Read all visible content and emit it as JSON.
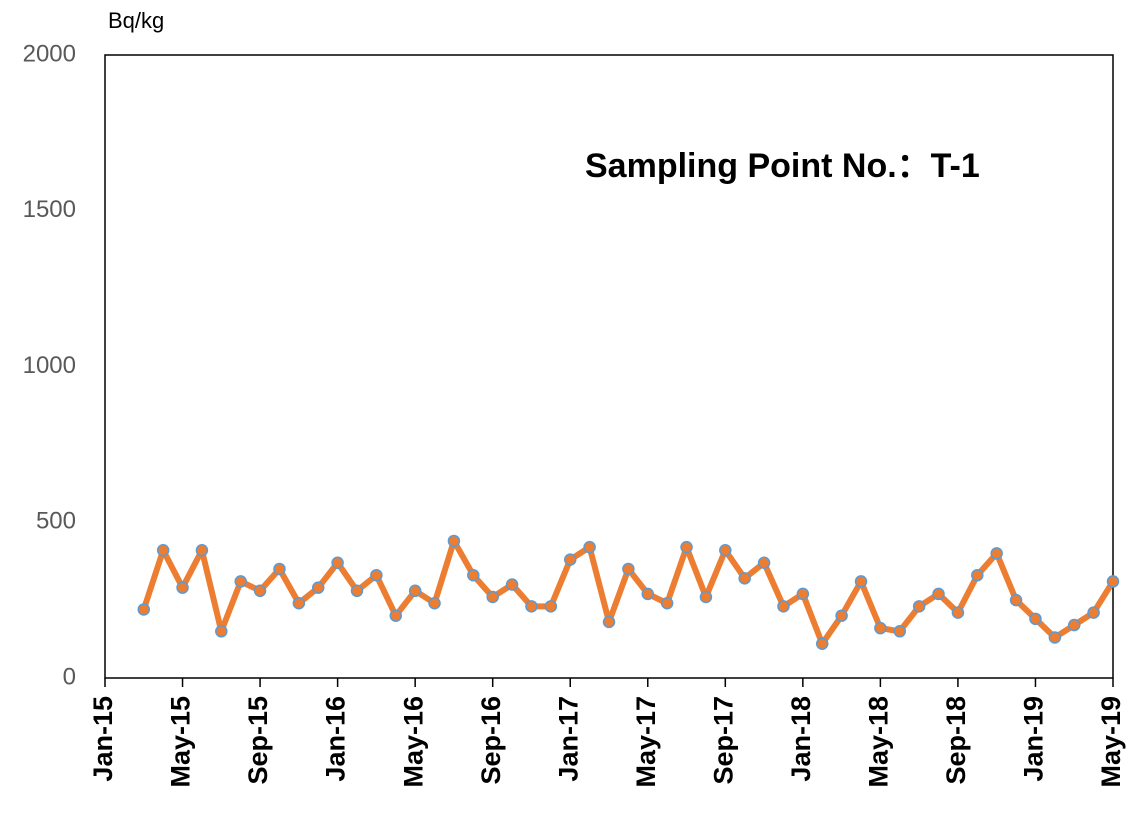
{
  "chart_data": {
    "type": "line",
    "y_label": "Bq/kg",
    "annotation": "Sampling Point No.：T-1",
    "x": [
      "2015-03",
      "2015-04",
      "2015-05",
      "2015-06",
      "2015-07",
      "2015-08",
      "2015-09",
      "2015-10",
      "2015-11",
      "2015-12",
      "2016-01",
      "2016-02",
      "2016-03",
      "2016-04",
      "2016-05",
      "2016-06",
      "2016-07",
      "2016-08",
      "2016-09",
      "2016-10",
      "2016-11",
      "2016-12",
      "2017-01",
      "2017-02",
      "2017-03",
      "2017-04",
      "2017-05",
      "2017-06",
      "2017-07",
      "2017-08",
      "2017-09",
      "2017-10",
      "2017-11",
      "2017-12",
      "2018-01",
      "2018-02",
      "2018-03",
      "2018-04",
      "2018-05",
      "2018-06",
      "2018-07",
      "2018-08",
      "2018-09",
      "2018-10",
      "2018-11",
      "2018-12",
      "2019-01",
      "2019-02",
      "2019-03",
      "2019-04",
      "2019-05"
    ],
    "series": [
      {
        "color": "#ED7D31",
        "marker_edge_color": "#5B9BD5",
        "values": [
          220,
          410,
          290,
          410,
          150,
          310,
          280,
          350,
          240,
          290,
          370,
          280,
          330,
          200,
          280,
          240,
          440,
          330,
          260,
          300,
          230,
          230,
          380,
          420,
          180,
          350,
          270,
          240,
          420,
          260,
          410,
          320,
          370,
          230,
          270,
          110,
          200,
          310,
          160,
          150,
          230,
          270,
          210,
          330,
          400,
          250,
          190,
          130,
          170,
          210,
          310
        ]
      }
    ],
    "xlim": [
      "2015-01",
      "2019-05"
    ],
    "xticks": [
      {
        "value": "2015-01",
        "label": "Jan-15"
      },
      {
        "value": "2015-05",
        "label": "May-15"
      },
      {
        "value": "2015-09",
        "label": "Sep-15"
      },
      {
        "value": "2016-01",
        "label": "Jan-16"
      },
      {
        "value": "2016-05",
        "label": "May-16"
      },
      {
        "value": "2016-09",
        "label": "Sep-16"
      },
      {
        "value": "2017-01",
        "label": "Jan-17"
      },
      {
        "value": "2017-05",
        "label": "May-17"
      },
      {
        "value": "2017-09",
        "label": "Sep-17"
      },
      {
        "value": "2018-01",
        "label": "Jan-18"
      },
      {
        "value": "2018-05",
        "label": "May-18"
      },
      {
        "value": "2018-09",
        "label": "Sep-18"
      },
      {
        "value": "2019-01",
        "label": "Jan-19"
      },
      {
        "value": "2019-05",
        "label": "May-19"
      }
    ],
    "ylim": [
      0,
      2000
    ],
    "yticks": [
      0,
      500,
      1000,
      1500,
      2000
    ],
    "grid": false
  }
}
